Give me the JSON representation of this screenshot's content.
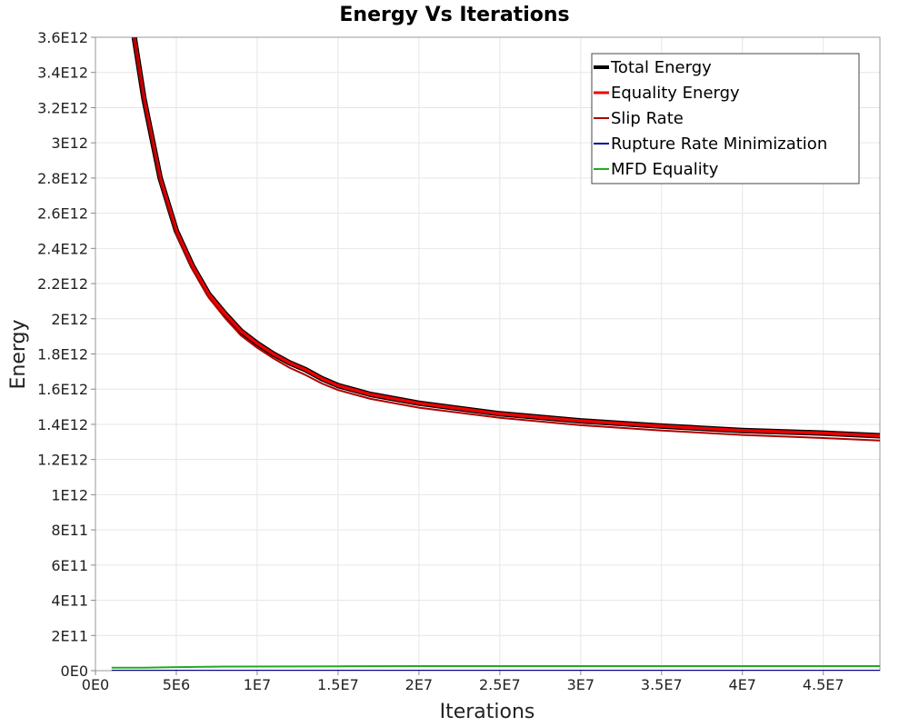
{
  "chart_data": {
    "type": "line",
    "title": "Energy Vs Iterations",
    "xlabel": "Iterations",
    "ylabel": "Energy",
    "xlim": [
      0,
      48500000
    ],
    "ylim": [
      0,
      3600000000000
    ],
    "x_ticks": [
      0,
      5000000,
      10000000,
      15000000,
      20000000,
      25000000,
      30000000,
      35000000,
      40000000,
      45000000
    ],
    "x_tick_labels": [
      "0E0",
      "5E6",
      "1E7",
      "1.5E7",
      "2E7",
      "2.5E7",
      "3E7",
      "3.5E7",
      "4E7",
      "4.5E7"
    ],
    "y_ticks": [
      0,
      200000000000,
      400000000000,
      600000000000,
      800000000000,
      1000000000000,
      1200000000000,
      1400000000000,
      1600000000000,
      1800000000000,
      2000000000000,
      2200000000000,
      2400000000000,
      2600000000000,
      2800000000000,
      3000000000000,
      3200000000000,
      3400000000000,
      3600000000000
    ],
    "y_tick_labels": [
      "0E0",
      "2E11",
      "4E11",
      "6E11",
      "8E11",
      "1E12",
      "1.2E12",
      "1.4E12",
      "1.6E12",
      "1.8E12",
      "2E12",
      "2.2E12",
      "2.4E12",
      "2.6E12",
      "2.8E12",
      "3E12",
      "3.2E12",
      "3.4E12",
      "3.6E12"
    ],
    "grid": true,
    "legend_position": "top-right",
    "series": [
      {
        "name": "Total Energy",
        "color": "#000000",
        "x": [
          2400000,
          3000000,
          4000000,
          5000000,
          6000000,
          7000000,
          8000000,
          9000000,
          10000000,
          11000000,
          12000000,
          13000000,
          14000000,
          15000000,
          17000000,
          20000000,
          25000000,
          30000000,
          35000000,
          40000000,
          45000000,
          48500000
        ],
        "y": [
          3600000000000,
          3250000000000,
          2800000000000,
          2500000000000,
          2300000000000,
          2140000000000,
          2030000000000,
          1930000000000,
          1860000000000,
          1800000000000,
          1750000000000,
          1710000000000,
          1660000000000,
          1620000000000,
          1570000000000,
          1520000000000,
          1460000000000,
          1420000000000,
          1390000000000,
          1365000000000,
          1350000000000,
          1335000000000
        ]
      },
      {
        "name": "Equality Energy",
        "color": "#ee0000",
        "x": [
          2400000,
          3000000,
          4000000,
          5000000,
          6000000,
          7000000,
          8000000,
          9000000,
          10000000,
          11000000,
          12000000,
          13000000,
          14000000,
          15000000,
          17000000,
          20000000,
          25000000,
          30000000,
          35000000,
          40000000,
          45000000,
          48500000
        ],
        "y": [
          3600000000000,
          3250000000000,
          2800000000000,
          2500000000000,
          2300000000000,
          2140000000000,
          2030000000000,
          1930000000000,
          1860000000000,
          1800000000000,
          1750000000000,
          1710000000000,
          1660000000000,
          1620000000000,
          1570000000000,
          1520000000000,
          1460000000000,
          1420000000000,
          1390000000000,
          1365000000000,
          1350000000000,
          1335000000000
        ]
      },
      {
        "name": "Slip Rate",
        "color": "#b00000",
        "x": [
          2400000,
          3000000,
          4000000,
          5000000,
          6000000,
          7000000,
          8000000,
          9000000,
          10000000,
          11000000,
          12000000,
          13000000,
          14000000,
          15000000,
          17000000,
          20000000,
          25000000,
          30000000,
          35000000,
          40000000,
          45000000,
          48500000
        ],
        "y": [
          3600000000000,
          3230000000000,
          2780000000000,
          2480000000000,
          2280000000000,
          2120000000000,
          2005000000000,
          1905000000000,
          1835000000000,
          1775000000000,
          1722000000000,
          1680000000000,
          1632000000000,
          1595000000000,
          1545000000000,
          1495000000000,
          1437000000000,
          1395000000000,
          1365000000000,
          1340000000000,
          1322000000000,
          1308000000000
        ]
      },
      {
        "name": "Rupture Rate Minimization",
        "color": "#000099",
        "x": [
          1000000,
          10000000,
          20000000,
          30000000,
          40000000,
          48500000
        ],
        "y": [
          0,
          0,
          0,
          0,
          0,
          0
        ]
      },
      {
        "name": "MFD Equality",
        "color": "#22aa22",
        "x": [
          1000000,
          3000000,
          5000000,
          8000000,
          15000000,
          20000000,
          30000000,
          40000000,
          48500000
        ],
        "y": [
          17000000000,
          17000000000,
          20000000000,
          23000000000,
          25000000000,
          26000000000,
          26000000000,
          26000000000,
          26000000000
        ]
      }
    ]
  }
}
